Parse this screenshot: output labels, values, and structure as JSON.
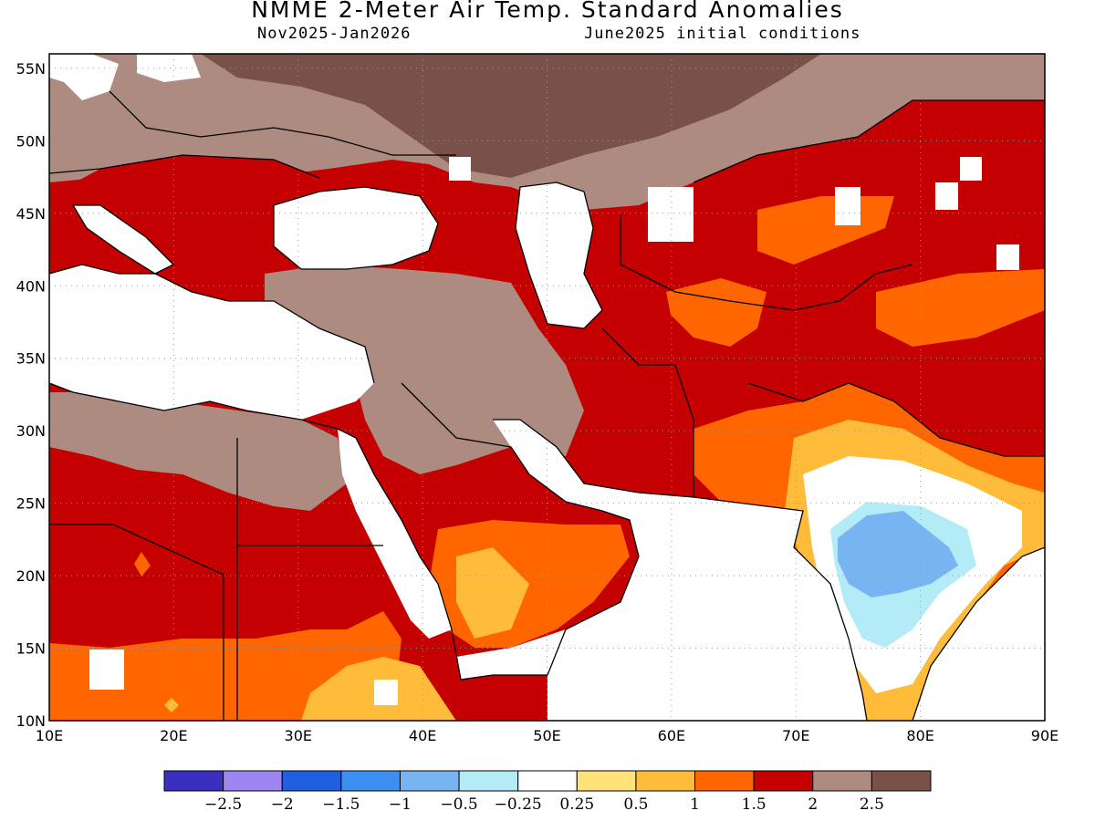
{
  "title": "NMME 2-Meter Air Temp. Standard Anomalies",
  "subtitle_left": "Nov2025-Jan2026",
  "subtitle_right": "June2025 initial conditions",
  "map": {
    "lon_range": [
      10,
      90
    ],
    "lat_range": [
      10,
      56
    ],
    "lon_ticks": [
      "10E",
      "20E",
      "30E",
      "40E",
      "50E",
      "60E",
      "70E",
      "80E",
      "90E"
    ],
    "lat_ticks": [
      "55N",
      "50N",
      "45N",
      "40N",
      "35N",
      "30N",
      "25N",
      "20N",
      "15N",
      "10N"
    ],
    "gridlines": "dotted"
  },
  "colorbar": {
    "colors": [
      "#3a2fbf",
      "#9d86f2",
      "#1f5fe0",
      "#3c8ff0",
      "#79b4f2",
      "#b3ecf6",
      "#ffffff",
      "#ffe27a",
      "#ffbc3a",
      "#ff6600",
      "#c40000",
      "#ae8b80",
      "#7a5148"
    ],
    "labels": [
      "-2.5",
      "-2",
      "-1.5",
      "-1",
      "-0.5",
      "-0.25",
      "0.25",
      "0.5",
      "1",
      "1.5",
      "2",
      "2.5"
    ]
  }
}
